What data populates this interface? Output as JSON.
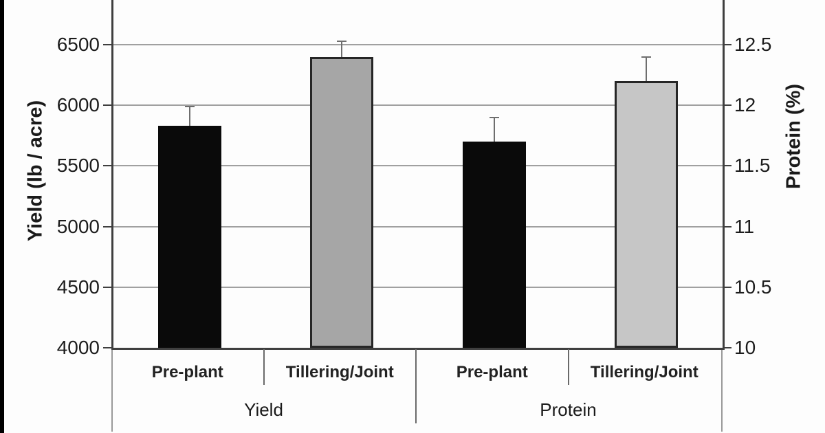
{
  "chart_data": {
    "type": "bar",
    "title": "",
    "grid": true,
    "legend": false,
    "left_axis": {
      "label": "Yield (lb / acre)",
      "min": 4000,
      "max": 6500,
      "tick_step": 500,
      "tick_labels": [
        "4000",
        "4500",
        "5000",
        "5500",
        "6000",
        "6500"
      ]
    },
    "right_axis": {
      "label": "Protein (%)",
      "min": 10,
      "max": 12.5,
      "tick_step": 0.5,
      "tick_labels": [
        "10",
        "10.5",
        "11",
        "11.5",
        "12",
        "12.5"
      ]
    },
    "groups": [
      {
        "label": "Yield",
        "axis": "left",
        "bars": [
          {
            "category": "Pre-plant",
            "value": 5830,
            "error": 160,
            "fill": "#0a0a0a",
            "stroke": "#0a0a0a"
          },
          {
            "category": "Tillering/Joint",
            "value": 6400,
            "error": 130,
            "fill": "#a6a6a6",
            "stroke": "#262626"
          }
        ]
      },
      {
        "label": "Protein",
        "axis": "right",
        "bars": [
          {
            "category": "Pre-plant",
            "value": 11.7,
            "error": 0.2,
            "fill": "#0a0a0a",
            "stroke": "#0a0a0a"
          },
          {
            "category": "Tillering/Joint",
            "value": 12.2,
            "error": 0.2,
            "fill": "#c6c6c6",
            "stroke": "#262626"
          }
        ]
      }
    ],
    "colors": {
      "gridline": "#a0a0a0",
      "axis_frame": "#3f3f3f",
      "error_bar": "#6e6e6e",
      "text": "#1a1a1a",
      "background": "#fdfdfd",
      "left_edge_stripe": "#000000"
    }
  }
}
